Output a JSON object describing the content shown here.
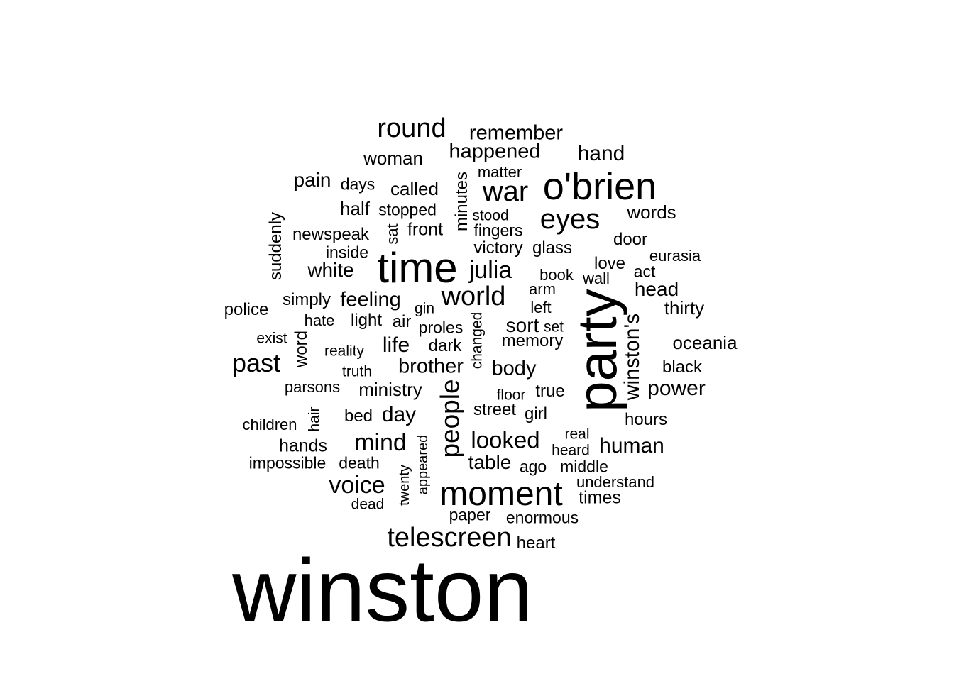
{
  "text_color": "#000000",
  "background": "#ffffff",
  "words": [
    {
      "text": "winston",
      "weight": 1.0
    },
    {
      "text": "party",
      "weight": 0.55
    },
    {
      "text": "time",
      "weight": 0.5
    },
    {
      "text": "o'brien",
      "weight": 0.45
    },
    {
      "text": "moment",
      "weight": 0.42
    },
    {
      "text": "eyes",
      "weight": 0.38
    },
    {
      "text": "war",
      "weight": 0.38
    },
    {
      "text": "round",
      "weight": 0.34
    },
    {
      "text": "world",
      "weight": 0.34
    },
    {
      "text": "telescreen",
      "weight": 0.34
    },
    {
      "text": "people",
      "weight": 0.33
    },
    {
      "text": "past",
      "weight": 0.33
    },
    {
      "text": "julia",
      "weight": 0.32
    },
    {
      "text": "voice",
      "weight": 0.31
    },
    {
      "text": "mind",
      "weight": 0.31
    },
    {
      "text": "looked",
      "weight": 0.3
    },
    {
      "text": "winston's",
      "weight": 0.3
    },
    {
      "text": "hand",
      "weight": 0.29
    },
    {
      "text": "remember",
      "weight": 0.28
    },
    {
      "text": "happened",
      "weight": 0.28
    },
    {
      "text": "feeling",
      "weight": 0.28
    },
    {
      "text": "day",
      "weight": 0.28
    },
    {
      "text": "life",
      "weight": 0.28
    },
    {
      "text": "brother",
      "weight": 0.28
    },
    {
      "text": "body",
      "weight": 0.28
    },
    {
      "text": "power",
      "weight": 0.28
    },
    {
      "text": "human",
      "weight": 0.28
    },
    {
      "text": "table",
      "weight": 0.28
    },
    {
      "text": "sort",
      "weight": 0.27
    },
    {
      "text": "head",
      "weight": 0.27
    },
    {
      "text": "pain",
      "weight": 0.27
    },
    {
      "text": "white",
      "weight": 0.27
    },
    {
      "text": "called",
      "weight": 0.26
    },
    {
      "text": "half",
      "weight": 0.26
    },
    {
      "text": "ministry",
      "weight": 0.26
    },
    {
      "text": "oceania",
      "weight": 0.26
    },
    {
      "text": "thirty",
      "weight": 0.25
    },
    {
      "text": "woman",
      "weight": 0.25
    },
    {
      "text": "words",
      "weight": 0.25
    },
    {
      "text": "minutes",
      "weight": 0.25
    },
    {
      "text": "suddenly",
      "weight": 0.25
    },
    {
      "text": "simply",
      "weight": 0.24
    },
    {
      "text": "word",
      "weight": 0.24
    },
    {
      "text": "front",
      "weight": 0.24
    },
    {
      "text": "victory",
      "weight": 0.24
    },
    {
      "text": "glass",
      "weight": 0.24
    },
    {
      "text": "love",
      "weight": 0.24
    },
    {
      "text": "bed",
      "weight": 0.24
    },
    {
      "text": "girl",
      "weight": 0.24
    },
    {
      "text": "true",
      "weight": 0.24
    },
    {
      "text": "street",
      "weight": 0.24
    },
    {
      "text": "hands",
      "weight": 0.24
    },
    {
      "text": "hours",
      "weight": 0.24
    },
    {
      "text": "times",
      "weight": 0.24
    },
    {
      "text": "newspeak",
      "weight": 0.23
    },
    {
      "text": "stopped",
      "weight": 0.23
    },
    {
      "text": "fingers",
      "weight": 0.23
    },
    {
      "text": "door",
      "weight": 0.23
    },
    {
      "text": "police",
      "weight": 0.23
    },
    {
      "text": "dark",
      "weight": 0.23
    },
    {
      "text": "light",
      "weight": 0.23
    },
    {
      "text": "air",
      "weight": 0.23
    },
    {
      "text": "proles",
      "weight": 0.23
    },
    {
      "text": "memory",
      "weight": 0.23
    },
    {
      "text": "black",
      "weight": 0.23
    },
    {
      "text": "parsons",
      "weight": 0.22
    },
    {
      "text": "children",
      "weight": 0.22
    },
    {
      "text": "impossible",
      "weight": 0.22
    },
    {
      "text": "death",
      "weight": 0.22
    },
    {
      "text": "middle",
      "weight": 0.22
    },
    {
      "text": "ago",
      "weight": 0.22
    },
    {
      "text": "understand",
      "weight": 0.22
    },
    {
      "text": "enormous",
      "weight": 0.22
    },
    {
      "text": "paper",
      "weight": 0.22
    },
    {
      "text": "heart",
      "weight": 0.22
    },
    {
      "text": "act",
      "weight": 0.22
    },
    {
      "text": "arm",
      "weight": 0.22
    },
    {
      "text": "left",
      "weight": 0.22
    },
    {
      "text": "inside",
      "weight": 0.22
    },
    {
      "text": "days",
      "weight": 0.22
    },
    {
      "text": "matter",
      "weight": 0.22
    },
    {
      "text": "book",
      "weight": 0.21
    },
    {
      "text": "wall",
      "weight": 0.21
    },
    {
      "text": "eurasia",
      "weight": 0.21
    },
    {
      "text": "stood",
      "weight": 0.21
    },
    {
      "text": "sat",
      "weight": 0.21
    },
    {
      "text": "hate",
      "weight": 0.21
    },
    {
      "text": "exist",
      "weight": 0.21
    },
    {
      "text": "reality",
      "weight": 0.21
    },
    {
      "text": "truth",
      "weight": 0.21
    },
    {
      "text": "gin",
      "weight": 0.21
    },
    {
      "text": "set",
      "weight": 0.21
    },
    {
      "text": "changed",
      "weight": 0.21
    },
    {
      "text": "floor",
      "weight": 0.21
    },
    {
      "text": "real",
      "weight": 0.21
    },
    {
      "text": "heard",
      "weight": 0.21
    },
    {
      "text": "hair",
      "weight": 0.21
    },
    {
      "text": "appeared",
      "weight": 0.21
    },
    {
      "text": "twenty",
      "weight": 0.21
    },
    {
      "text": "dead",
      "weight": 0.21
    }
  ]
}
